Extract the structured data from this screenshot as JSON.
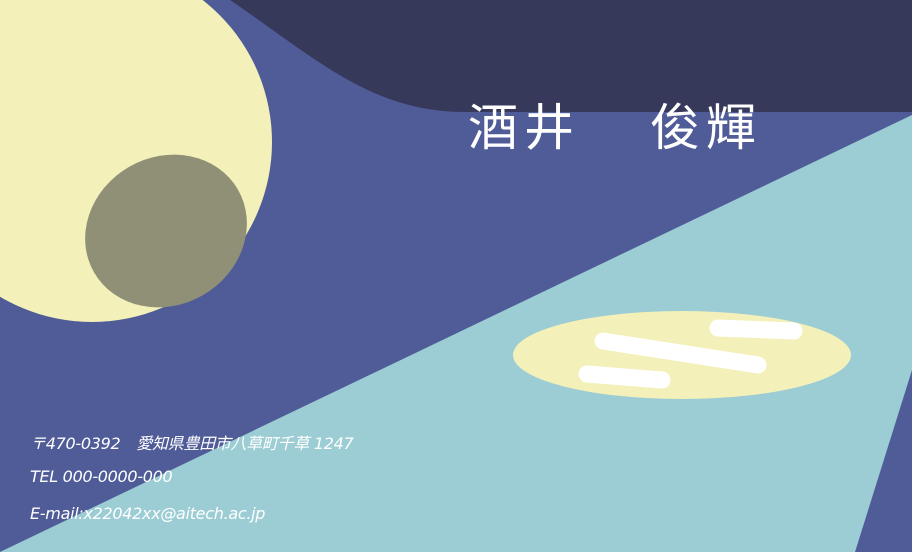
{
  "card": {
    "name": {
      "family": "酒井",
      "given": "俊輝"
    },
    "address": {
      "postal": "〒470-0392",
      "street": "愛知県豊田市八草町千草 1247"
    },
    "tel": "TEL 000-0000-000",
    "email": "E-mail:x22042xx@aitech.ac.jp"
  },
  "colors": {
    "navy": "#36395a",
    "blue": "#505c98",
    "light_blue": "#9ccdd4",
    "cream": "#f3f0b9",
    "olive": "#909076",
    "white": "#ffffff"
  }
}
